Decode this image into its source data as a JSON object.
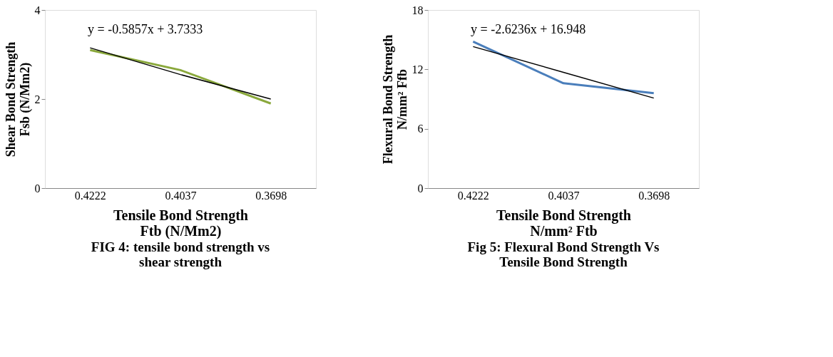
{
  "chart_data": [
    {
      "type": "line",
      "categories": [
        "0.4222",
        "0.4037",
        "0.3698"
      ],
      "xlabel": "Tensile Bond Strength Ftb (N/Mm2)",
      "ylabel": "Shear Bond Strength Fsb (N/Mm2)",
      "ylim": [
        0,
        4
      ],
      "yticks": [
        0,
        2,
        4
      ],
      "grid": false,
      "marker": "none",
      "line_style": "solid",
      "series": [
        {
          "color": "#8aa83c",
          "values": [
            3.1,
            2.65,
            1.9
          ]
        },
        {
          "color": "#000000",
          "values": [
            3.15,
            2.55,
            2.0
          ]
        }
      ],
      "annotations": [
        "y = -0.5857x + 3.7333",
        "FIG 4: tensile bond strength vs shear strength"
      ]
    },
    {
      "type": "line",
      "categories": [
        "0.4222",
        "0.4037",
        "0.3698"
      ],
      "xlabel": "Tensile Bond Strength N/mm² Ftb",
      "ylabel": "Flexural Bond Strength N/mm² Ffb",
      "ylim": [
        0,
        18
      ],
      "yticks": [
        0,
        6,
        12,
        18
      ],
      "grid": false,
      "marker": "none",
      "line_style": "solid",
      "series": [
        {
          "color": "#4a7ebb",
          "values": [
            14.8,
            10.6,
            9.6
          ]
        },
        {
          "color": "#000000",
          "values": [
            14.3,
            11.7,
            9.1
          ]
        }
      ],
      "annotations": [
        "y = -2.6236x + 16.948",
        "Fig 5: Flexural Bond Strength Vs Tensile Bond Strength"
      ]
    }
  ]
}
